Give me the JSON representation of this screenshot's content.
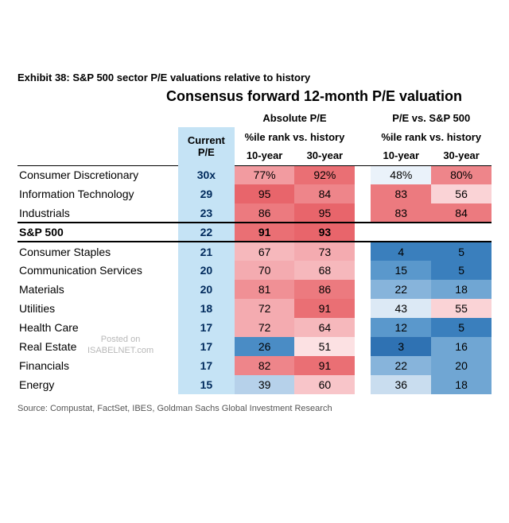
{
  "exhibit_title": "Exhibit 38: S&P 500 sector P/E valuations relative to history",
  "main_title": "Consensus forward 12-month P/E valuation",
  "headers": {
    "current_pe": "Current P/E",
    "absolute_group": "Absolute P/E",
    "relative_group": "P/E vs. S&P 500",
    "subgroup": "%ile rank vs. history",
    "y10": "10-year",
    "y30": "30-year"
  },
  "colors": {
    "current_pe_bg": "#c5e3f5",
    "navy_text": "#002a5c",
    "red_scale": {
      "r100": "#e8656b",
      "r95": "#ea6f74",
      "r90": "#ec7a7f",
      "r85": "#ee858a",
      "r80": "#f09095",
      "r75": "#f29ba0",
      "r70": "#f4abb0",
      "r65": "#f6b8bc",
      "r60": "#f8c5c9",
      "r55": "#fad3d6",
      "r50": "#fce1e3"
    },
    "blue_scale": {
      "b50": "#eaf2fa",
      "b45": "#dce9f5",
      "b40": "#c9ddef",
      "b35": "#b6d1ea",
      "b30": "#a0c4e3",
      "b25": "#87b4db",
      "b20": "#70a6d3",
      "b15": "#5a98cc",
      "b10": "#4a8cc5",
      "b05": "#3a7fbd",
      "b03": "#2f72b3"
    }
  },
  "rows": [
    {
      "sector": "Consumer Discretionary",
      "pe": "30x",
      "a10": "77%",
      "a10c": "#f29ba0",
      "a30": "92%",
      "a30c": "#ea6f74",
      "r10": "48%",
      "r10c": "#eaf2fa",
      "r30": "80%",
      "r30c": "#ee858a"
    },
    {
      "sector": "Information Technology",
      "pe": "29",
      "a10": "95",
      "a10c": "#e8656b",
      "a30": "84",
      "a30c": "#ee858a",
      "r10": "83",
      "r10c": "#ec7a7f",
      "r30": "56",
      "r30c": "#fad3d6"
    },
    {
      "sector": "Industrials",
      "pe": "23",
      "a10": "86",
      "a10c": "#ec7a7f",
      "a30": "95",
      "a30c": "#e8656b",
      "r10": "83",
      "r10c": "#ec7a7f",
      "r30": "84",
      "r30c": "#ec7a7f"
    },
    {
      "sector": "S&P 500",
      "pe": "22",
      "a10": "91",
      "a10c": "#ea6f74",
      "a30": "93",
      "a30c": "#e8656b",
      "r10": "",
      "r10c": "#ffffff",
      "r30": "",
      "r30c": "#ffffff",
      "sp500": true
    },
    {
      "sector": "Consumer Staples",
      "pe": "21",
      "a10": "67",
      "a10c": "#f6b8bc",
      "a30": "73",
      "a30c": "#f4abb0",
      "r10": "4",
      "r10c": "#3a7fbd",
      "r30": "5",
      "r30c": "#3a7fbd"
    },
    {
      "sector": "Communication Services",
      "pe": "20",
      "a10": "70",
      "a10c": "#f4abb0",
      "a30": "68",
      "a30c": "#f6b8bc",
      "r10": "15",
      "r10c": "#5a98cc",
      "r30": "5",
      "r30c": "#3a7fbd"
    },
    {
      "sector": "Materials",
      "pe": "20",
      "a10": "81",
      "a10c": "#f09095",
      "a30": "86",
      "a30c": "#ec7a7f",
      "r10": "22",
      "r10c": "#87b4db",
      "r30": "18",
      "r30c": "#70a6d3"
    },
    {
      "sector": "Utilities",
      "pe": "18",
      "a10": "72",
      "a10c": "#f4abb0",
      "a30": "91",
      "a30c": "#ea6f74",
      "r10": "43",
      "r10c": "#dce9f5",
      "r30": "55",
      "r30c": "#fad3d6"
    },
    {
      "sector": "Health Care",
      "pe": "17",
      "a10": "72",
      "a10c": "#f4abb0",
      "a30": "64",
      "a30c": "#f6b8bc",
      "r10": "12",
      "r10c": "#5a98cc",
      "r30": "5",
      "r30c": "#3a7fbd"
    },
    {
      "sector": "Real Estate",
      "pe": "17",
      "a10": "26",
      "a10c": "#4a8cc5",
      "a30": "51",
      "a30c": "#fce1e3",
      "r10": "3",
      "r10c": "#2f72b3",
      "r30": "16",
      "r30c": "#70a6d3"
    },
    {
      "sector": "Financials",
      "pe": "17",
      "a10": "82",
      "a10c": "#ee858a",
      "a30": "91",
      "a30c": "#ea6f74",
      "r10": "22",
      "r10c": "#87b4db",
      "r30": "20",
      "r30c": "#70a6d3"
    },
    {
      "sector": "Energy",
      "pe": "15",
      "a10": "39",
      "a10c": "#b6d1ea",
      "a30": "60",
      "a30c": "#f8c5c9",
      "r10": "36",
      "r10c": "#c9ddef",
      "r30": "18",
      "r30c": "#70a6d3"
    }
  ],
  "source": "Source: Compustat, FactSet, IBES, Goldman Sachs Global Investment Research",
  "watermark": {
    "line1": "Posted on",
    "line2": "ISABELNET.com"
  }
}
